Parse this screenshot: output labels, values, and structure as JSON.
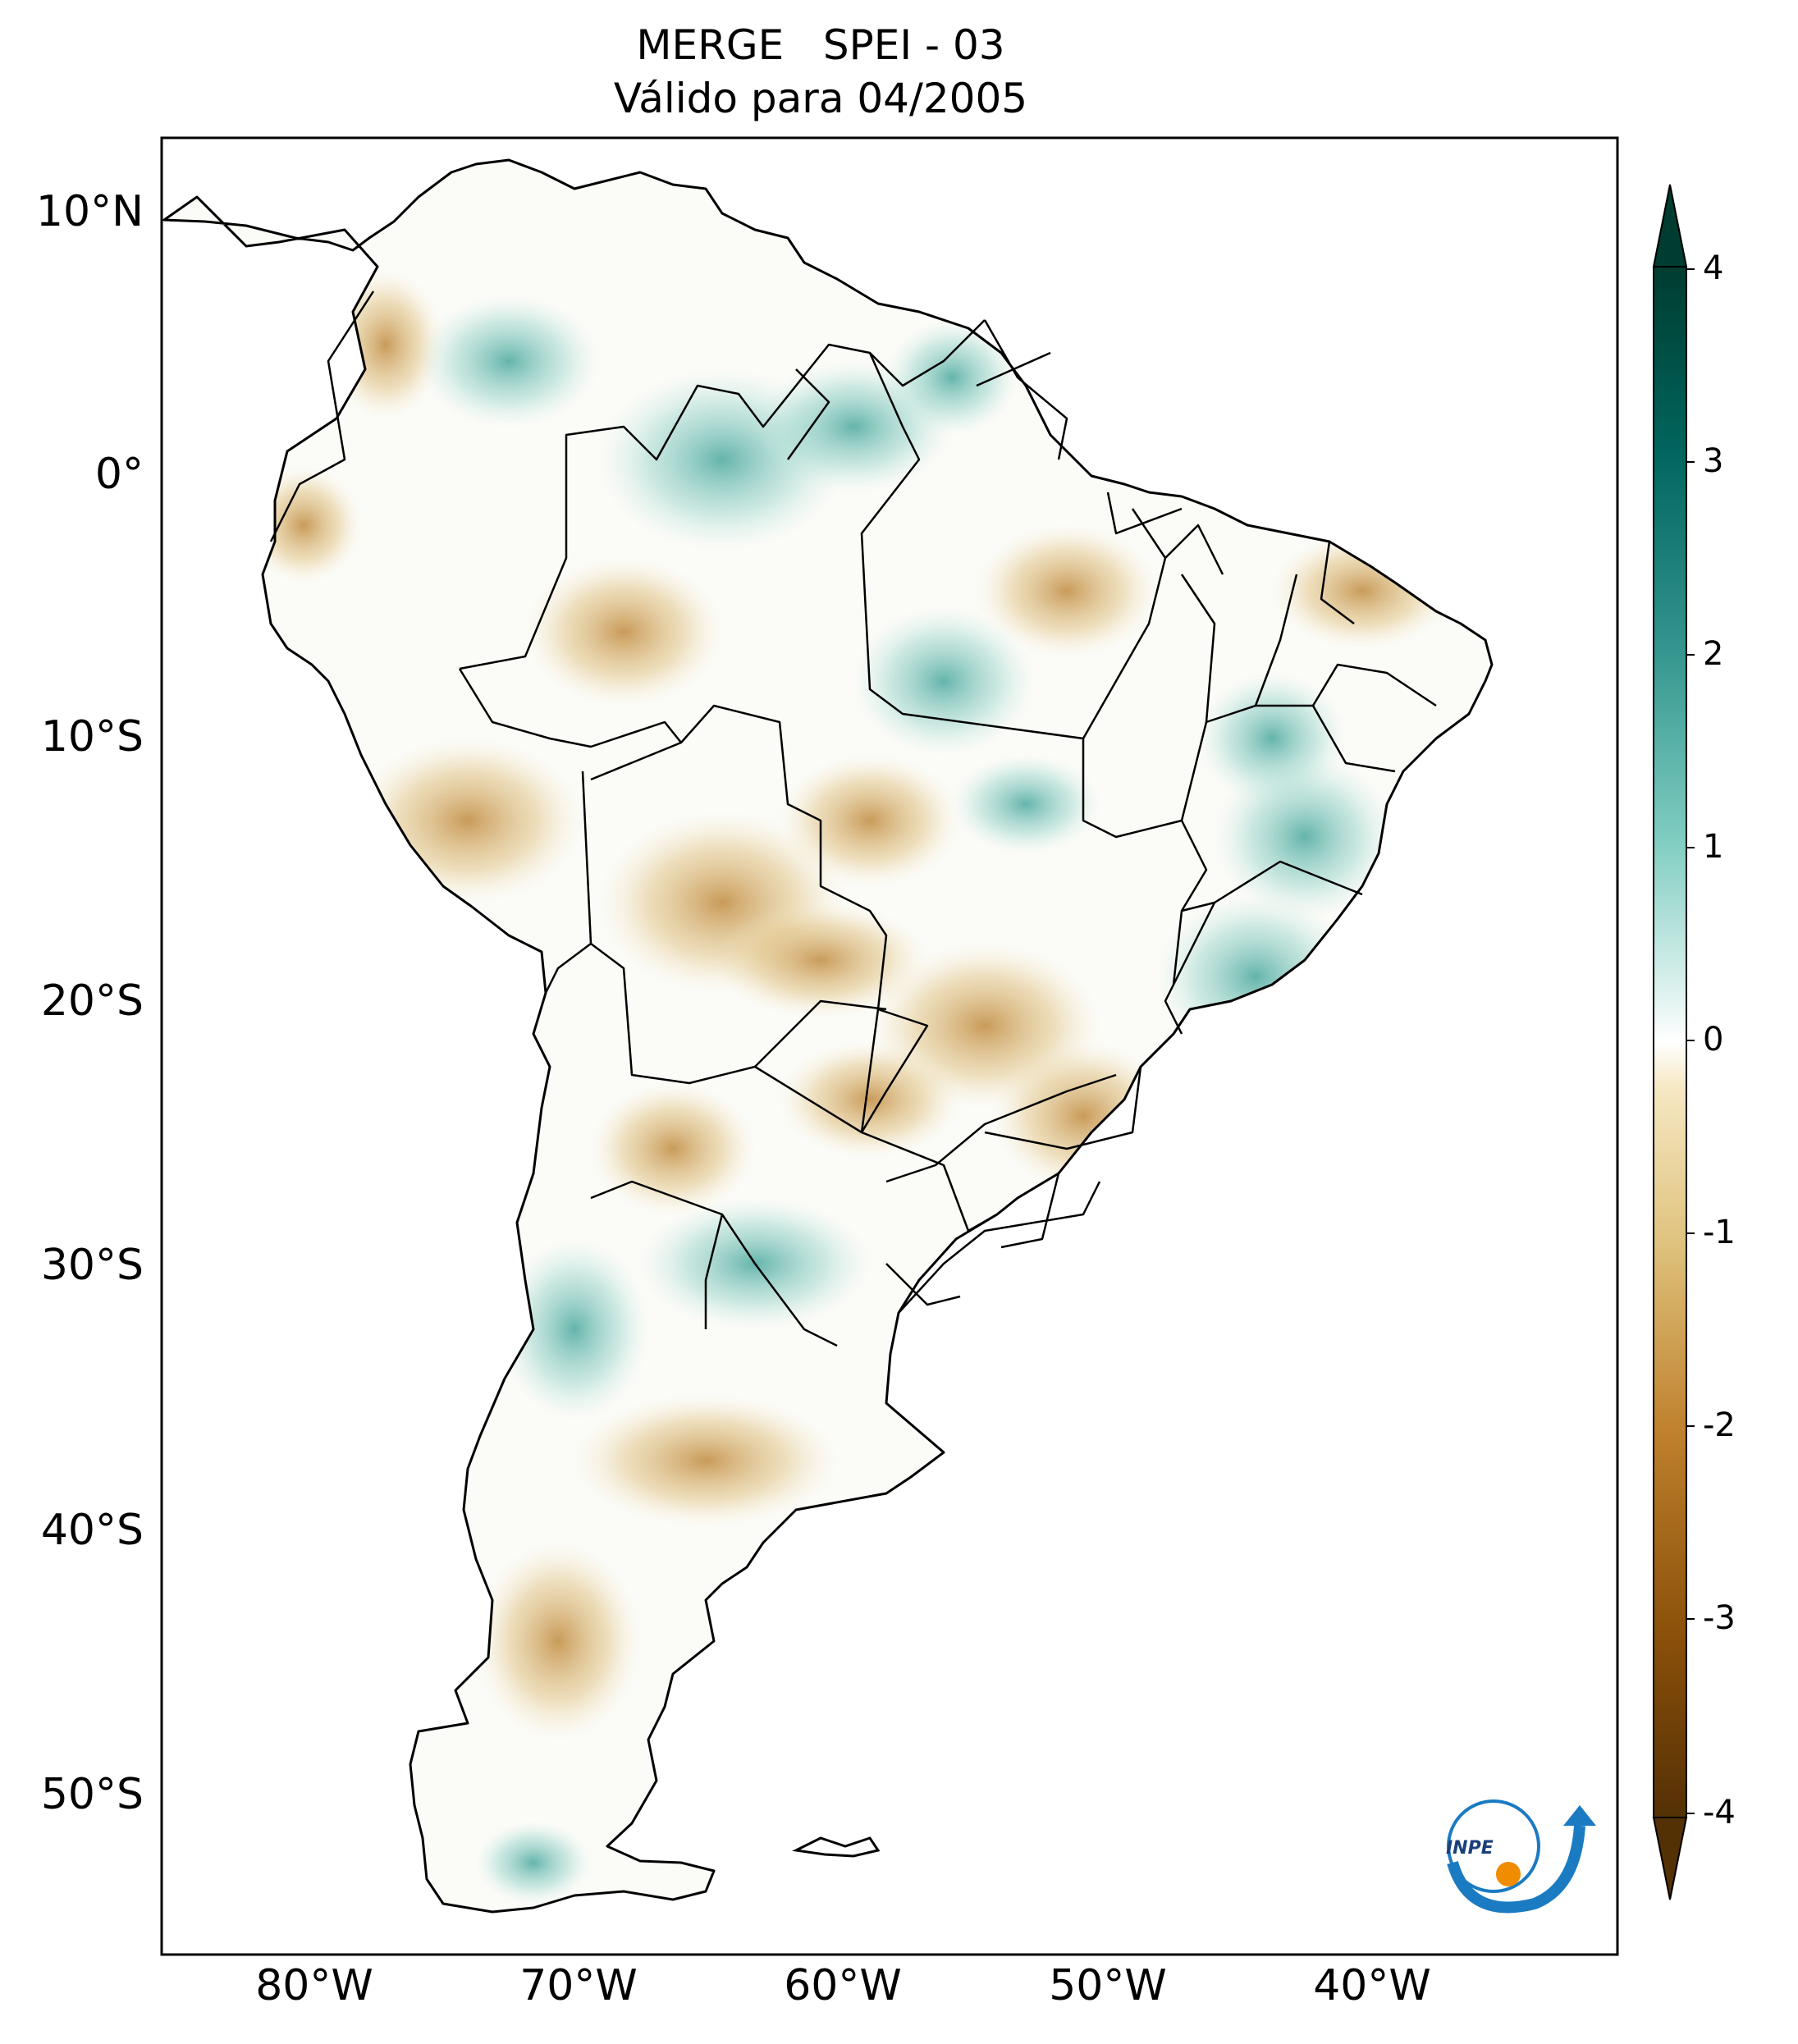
{
  "title": {
    "line1": "MERGE   SPEI - 03",
    "line2": "Válido para 04/2005"
  },
  "axes": {
    "lat_labels": [
      "10°N",
      "0°",
      "10°S",
      "20°S",
      "30°S",
      "40°S",
      "50°S"
    ],
    "lon_labels": [
      "80°W",
      "70°W",
      "60°W",
      "50°W",
      "40°W"
    ]
  },
  "colorbar": {
    "ticks": [
      "4",
      "3",
      "2",
      "1",
      "0",
      "-1",
      "-2",
      "-3",
      "-4"
    ],
    "colors": {
      "positive": "#01665e",
      "mid": "#ffffff",
      "negative": "#543005"
    }
  },
  "logo": {
    "text": "INPE"
  },
  "colors": {
    "wet": "#5ab4ac",
    "dry": "#d8b365",
    "border": "#000000"
  }
}
